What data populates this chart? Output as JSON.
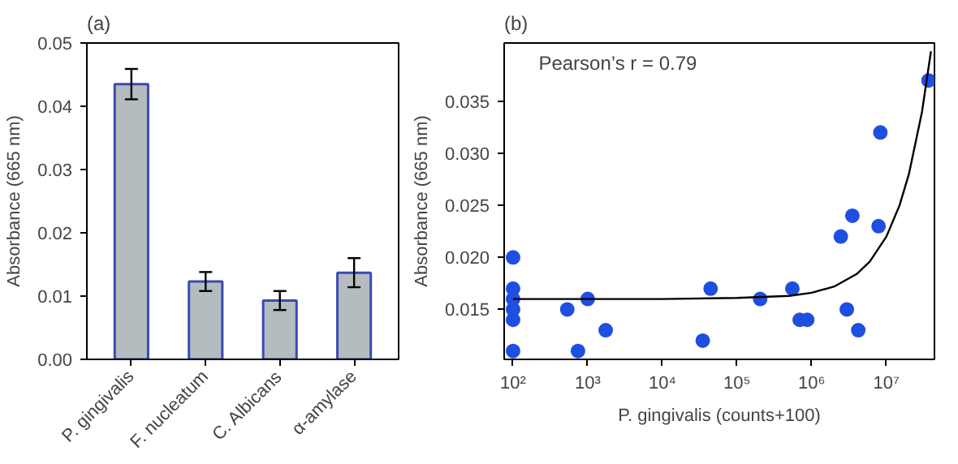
{
  "chart_data": [
    {
      "type": "bar",
      "title": "(a)",
      "ylabel": "Absorbance (665 nm)",
      "categories": [
        "P. gingivalis",
        "F. nucleatum",
        "C. Albicans",
        "α-amylase"
      ],
      "values": [
        0.0435,
        0.0123,
        0.0093,
        0.0137
      ],
      "errors": [
        0.0024,
        0.0015,
        0.0015,
        0.0023
      ],
      "color": "#b4bcc0",
      "ylim": [
        0,
        0.05
      ],
      "yticks": [
        {
          "value": 0,
          "label": "0.00"
        },
        0.01,
        0.02,
        0.03,
        0.04,
        0.05
      ],
      "grid": false
    },
    {
      "type": "scatter",
      "title": "(b)",
      "xlabel": "P. gingivalis (counts+100)",
      "ylabel": "Absorbance (665 nm)",
      "annotations": [
        "Pearson’s r = 0.79"
      ],
      "log": "x",
      "grid": false,
      "series": [
        {
          "type": "scatter",
          "marker": "circle",
          "color": "#1f4fe0",
          "x": [
            100,
            100,
            100,
            100,
            100,
            100,
            532,
            1000,
            740,
            1740,
            34700,
            44200,
            204000,
            550000,
            690000,
            870000,
            2450000,
            2950000,
            3500000,
            4200000,
            7850000,
            8300000,
            36700000
          ],
          "values": [
            0.02,
            0.017,
            0.016,
            0.015,
            0.014,
            0.011,
            0.015,
            0.016,
            0.011,
            0.013,
            0.012,
            0.017,
            0.016,
            0.017,
            0.014,
            0.014,
            0.022,
            0.015,
            0.024,
            0.013,
            0.023,
            0.032,
            0.037
          ]
        },
        {
          "type": "line",
          "marker": "none",
          "color": "#000000",
          "x": [
            100,
            10000,
            100000,
            500000,
            1000000,
            2000000,
            4000000,
            6000000,
            10000000,
            15000000,
            20000000,
            30000000,
            39500000
          ],
          "values": [
            0.016,
            0.016,
            0.0161,
            0.0163,
            0.0166,
            0.0172,
            0.0184,
            0.0196,
            0.022,
            0.025,
            0.028,
            0.034,
            0.0398
          ]
        }
      ],
      "xlim": [
        76,
        44000000
      ],
      "ylim": [
        0.0102,
        0.0406
      ],
      "xticks": [
        {
          "value": 100,
          "label": "10²"
        },
        {
          "value": 1000,
          "label": "10³"
        },
        {
          "value": 10000,
          "label": "10⁴"
        },
        {
          "value": 100000,
          "label": "10⁵"
        },
        {
          "value": 1000000,
          "label": "10⁶"
        },
        {
          "value": 10000000,
          "label": "10⁷"
        }
      ],
      "yticks": [
        0.015,
        {
          "value": 0.02,
          "label": "0.020"
        },
        0.025,
        {
          "value": 0.03,
          "label": "0.030"
        },
        0.035
      ]
    }
  ]
}
